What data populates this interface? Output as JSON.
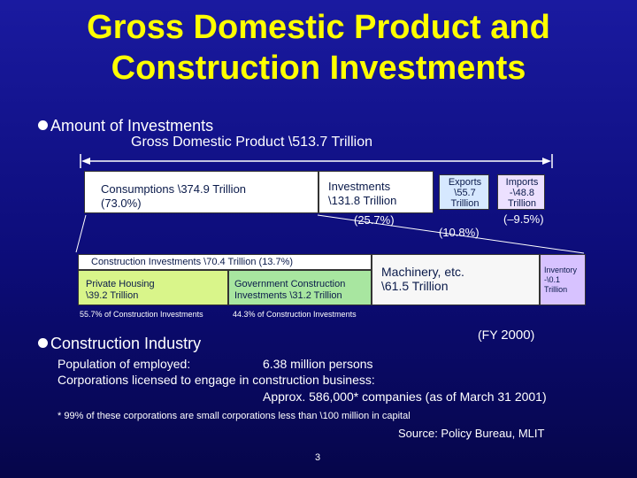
{
  "title": {
    "line1": "Gross Domestic Product and",
    "line2": "Construction Investments"
  },
  "section1": {
    "heading": "Amount of Investments",
    "gdp_label": "Gross Domestic Product \\513.7 Trillion"
  },
  "bar": {
    "consumptions": {
      "line1": "Consumptions \\374.9 Trillion",
      "line2": "(73.0%)"
    },
    "investments": {
      "line1": "Investments",
      "line2": "\\131.8 Trillion",
      "pct": "(25.7%)"
    },
    "exports": {
      "line1": "Exports",
      "line2": "\\55.7",
      "line3": "Trillion",
      "pct": "(10.8%)"
    },
    "imports": {
      "line1": "Imports",
      "line2": "-\\48.8",
      "line3": "Trillion",
      "pct": "(–9.5%)"
    }
  },
  "breakdown": {
    "construction": "Construction Investments \\70.4 Trillion (13.7%)",
    "private_housing": {
      "line1": "Private Housing",
      "line2": "\\39.2 Trillion",
      "note": "55.7% of Construction Investments"
    },
    "government": {
      "line1": "Government Construction",
      "line2": "Investments \\31.2 Trillion",
      "note": "44.3% of Construction Investments"
    },
    "machinery": {
      "line1": "Machinery, etc.",
      "line2": "\\61.5 Trillion"
    },
    "inventory": {
      "line1": "Inventory",
      "line2": "-\\0.1",
      "line3": "Trillion"
    }
  },
  "fiscal_year": {
    "prefix": "(FY ",
    "year": "2000",
    "suffix": ")"
  },
  "section2": {
    "heading": "Construction Industry",
    "line1_label": "Population of employed:",
    "line1_value": "6.38 million persons",
    "line2": "Corporations licensed to engage in construction business:",
    "line3": "Approx. 586,000* companies (as of March 31 2001)",
    "footnote": "* 99% of these corporations are small corporations less than \\100 million in capital",
    "source": "Source: Policy Bureau, MLIT"
  },
  "page_number": "3",
  "colors": {
    "background": "#0c0c78",
    "title": "#ffff00",
    "consumptions": "#ffffff",
    "investments": "#ffffff",
    "exports": "#d6e8ff",
    "imports": "#ece0ff",
    "construction": "#ffffff",
    "private_housing": "#d9f58a",
    "government": "#a8e6a0",
    "machinery": "#f7f7f7",
    "inventory": "#d7c2ff"
  }
}
